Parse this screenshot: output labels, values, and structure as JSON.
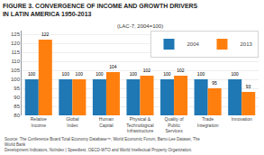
{
  "chart_data": {
    "type": "bar",
    "title": "FIGURE 3. CONVERGENCE OF INCOME AND GROWTH DRIVERS IN LATIN AMERICA 1950-2013",
    "subtitle": "(LAC-7, 2004=100)",
    "categories": [
      "Relative\nIncome",
      "Global\nIndex",
      "Human\nCapital",
      "Physical &\nTechnological\nInfrastructure",
      "Quality of\nPublic\nServices",
      "Trade\nIntegration",
      "Innovation"
    ],
    "series": [
      {
        "name": "2004",
        "values": [
          100,
          100,
          100,
          100,
          100,
          100,
          100
        ]
      },
      {
        "name": "2013",
        "values": [
          122,
          100,
          104,
          102,
          102,
          95,
          93
        ]
      }
    ],
    "ylim": [
      80,
      127
    ],
    "yticks": [
      80,
      85,
      90,
      95,
      100,
      105,
      110,
      115,
      120,
      125
    ],
    "grid": true,
    "legend": "upper right",
    "data_labels": true,
    "annotations": [
      "Source: The Conference Board Total Economy Database™, World Economic Forum, Barro-Lee Dataset, The World Bank\nDevelopment Indicators, NxIndex | Speedtest, OECD-WTO and World Intellectual Property Organization."
    ]
  }
}
